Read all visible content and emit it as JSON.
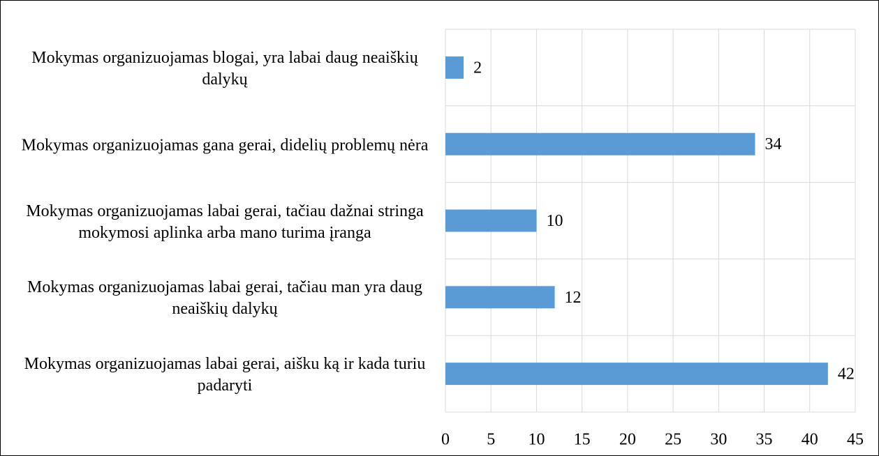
{
  "chart_data": {
    "type": "bar",
    "orientation": "horizontal",
    "categories": [
      "Mokymas organizuojamas blogai, yra labai daug neaiškių dalykų",
      "Mokymas organizuojamas gana gerai, didelių problemų nėra",
      "Mokymas organizuojamas labai gerai, tačiau dažnai stringa mokymosi aplinka arba mano turima įranga",
      "Mokymas organizuojamas labai gerai, tačiau man yra daug neaiškių dalykų",
      "Mokymas organizuojamas labai gerai, aišku ką ir kada turiu padaryti"
    ],
    "values": [
      2,
      34,
      10,
      12,
      42
    ],
    "color": "#5b9bd5",
    "xlim": [
      0,
      45
    ],
    "xticks": [
      0,
      5,
      10,
      15,
      20,
      25,
      30,
      35,
      40,
      45
    ],
    "grid": true
  }
}
